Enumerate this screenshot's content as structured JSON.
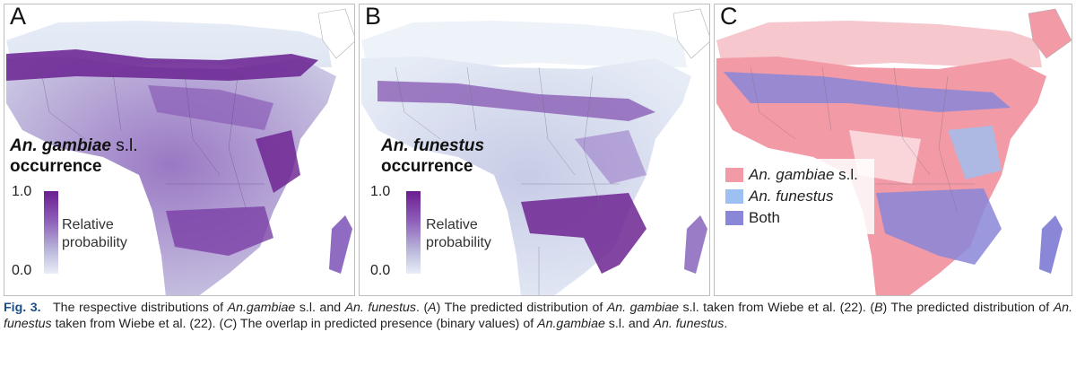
{
  "colors": {
    "purple_high": "#6a1e8f",
    "purple_low": "#e8eef8",
    "gambiae_pink": "#f29aa6",
    "funestus_blue": "#9cc0f2",
    "both_indigo": "#8a86d8",
    "caption_label": "#1a4f8a"
  },
  "panels": [
    {
      "letter": "A",
      "title_species": "An. gambiae",
      "title_suffix": " s.l.",
      "title_line2": "occurrence",
      "scale_max": "1.0",
      "scale_min": "0.0",
      "scale_label_line1": "Relative",
      "scale_label_line2": "probability"
    },
    {
      "letter": "B",
      "title_species": "An. funestus",
      "title_line2": "occurrence",
      "scale_max": "1.0",
      "scale_min": "0.0",
      "scale_label_line1": "Relative",
      "scale_label_line2": "probability"
    },
    {
      "letter": "C",
      "legend": [
        {
          "species": "An. gambiae",
          "suffix": " s.l.",
          "color": "#f29aa6"
        },
        {
          "species": "An. funestus",
          "suffix": "",
          "color": "#9cc0f2"
        },
        {
          "species": "",
          "suffix": "Both",
          "color": "#8a86d8"
        }
      ]
    }
  ],
  "caption": {
    "label": "Fig. 3.",
    "t1": "The respective distributions of ",
    "i1": "An.gambiae",
    "t2": " s.l. and ",
    "i2": "An. funestus",
    "t3": ". (",
    "i3": "A",
    "t4": ") The predicted distribution of ",
    "i4": "An. gambiae",
    "t5": " s.l. taken from Wiebe et al. (22). (",
    "i5": "B",
    "t6": ") The predicted distribution of ",
    "i6": "An. funestus",
    "t7": " taken from Wiebe et al. (22). (",
    "i7": "C",
    "t8": ") The overlap in predicted presence (binary values) of ",
    "i8": "An.gambiae",
    "t9": " s.l. and ",
    "i9": "An. funestus",
    "t10": "."
  }
}
